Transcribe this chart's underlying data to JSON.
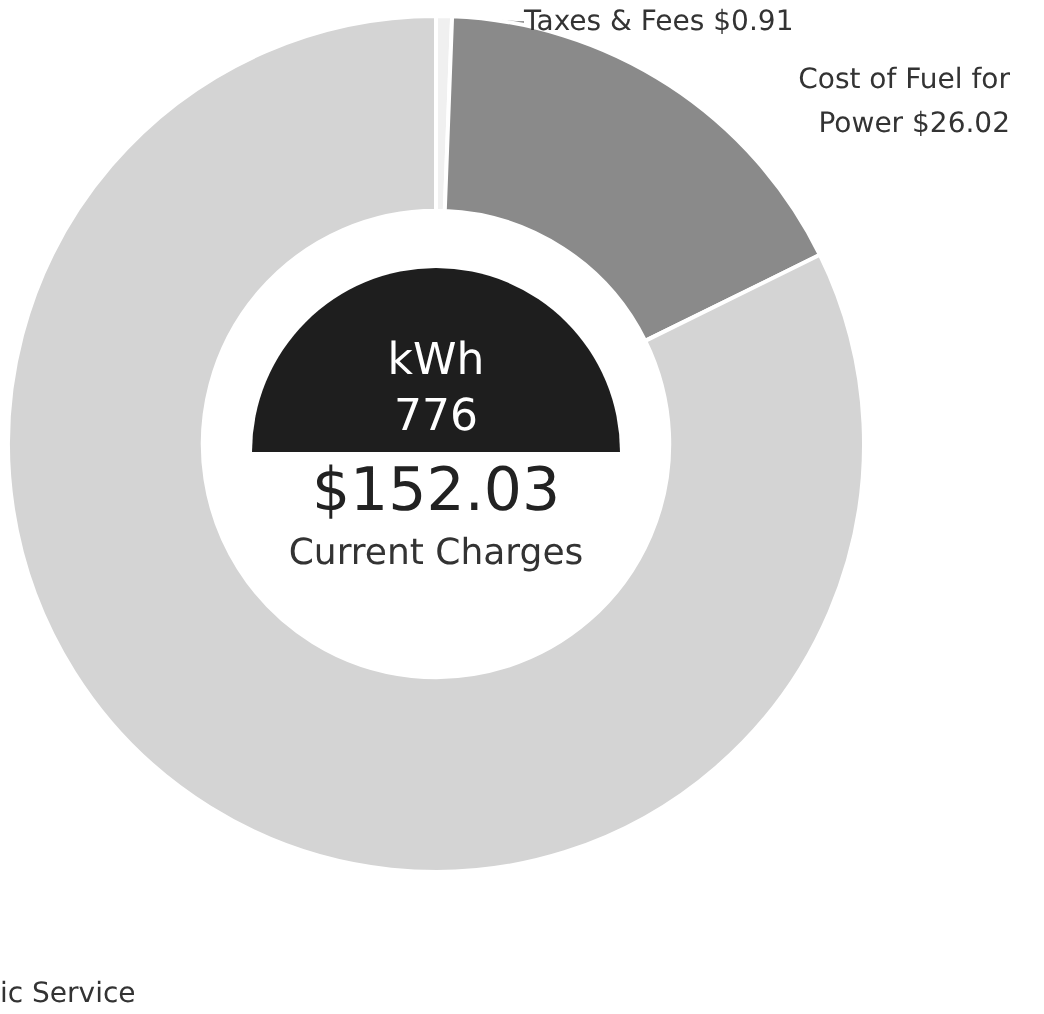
{
  "chart_data": {
    "type": "donut",
    "categories": [
      "Taxes & Fees $0.91",
      "Cost of Fuel for Power $26.02",
      "ic Service"
    ],
    "values": [
      0.91,
      26.02,
      125.1
    ],
    "colors": [
      "#f0f0f0",
      "#8a8a8a",
      "#d4d4d4"
    ],
    "annotations": [
      "kWh",
      "776",
      "$152.03",
      "Current Charges"
    ],
    "legend": false
  }
}
